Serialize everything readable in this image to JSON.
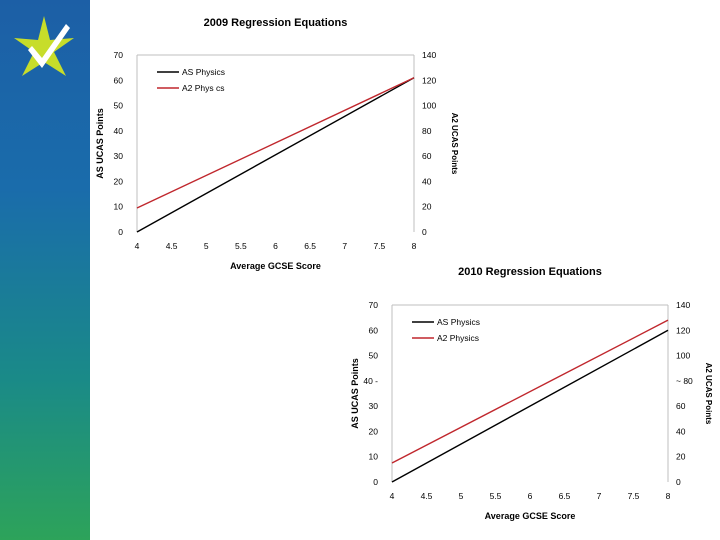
{
  "colors": {
    "sidebar_top": "#1c5fa6",
    "sidebar_bottom": "#2da35a",
    "logo_yellow": "#c7dd2a",
    "logo_white": "#ffffff",
    "as_line": "#000000",
    "a2_line": "#c0272d",
    "tick_label": "#000000",
    "grid": "#bfbfbf"
  },
  "logo": {
    "icon": "star-logo-icon"
  },
  "chart_data": [
    {
      "type": "line",
      "title": "2009 Regression Equations",
      "xlabel": "Average GCSE Score",
      "ylabel": "AS UCAS Points",
      "y2label": "A2 UCAS Points",
      "xlim": [
        4,
        8
      ],
      "ylim": [
        0,
        70
      ],
      "y2lim": [
        0,
        140
      ],
      "x_ticks": [
        4,
        4.5,
        5,
        5.5,
        6,
        6.5,
        7,
        7.5,
        8
      ],
      "x_tick_labels": [
        "4",
        "4.5",
        "5",
        "5.5",
        "6",
        "6.5",
        "7",
        "7.5",
        "8"
      ],
      "y_ticks": [
        0,
        10,
        20,
        30,
        40,
        50,
        60,
        70
      ],
      "y2_ticks": [
        0,
        20,
        40,
        60,
        80,
        100,
        120,
        140
      ],
      "legend_position": "top-left",
      "series": [
        {
          "name": "AS Physics",
          "axis": "left",
          "x": [
            4,
            8
          ],
          "y": [
            0,
            61
          ],
          "color": "#000000"
        },
        {
          "name": "A2 Phys cs",
          "axis": "right",
          "x": [
            4,
            8
          ],
          "y": [
            19,
            122
          ],
          "color": "#c0272d"
        }
      ]
    },
    {
      "type": "line",
      "title": "2010 Regression Equations",
      "xlabel": "Average GCSE Score",
      "ylabel": "AS UCAS Points",
      "y2label": "A2 UCAS Points",
      "xlim": [
        4,
        8
      ],
      "ylim": [
        0,
        70
      ],
      "y2lim": [
        0,
        140
      ],
      "x_ticks": [
        4,
        4.5,
        5,
        5.5,
        6,
        6.5,
        7,
        7.5,
        8
      ],
      "x_tick_labels": [
        "4",
        "4.5",
        "5",
        "5.5",
        "6",
        "6.5",
        "7",
        "7.5",
        "8"
      ],
      "y_ticks": [
        0,
        10,
        20,
        30,
        40,
        50,
        60,
        70
      ],
      "y_tick_labels": [
        "0",
        "10",
        "20",
        "30",
        "40 -",
        "50",
        "60",
        "70"
      ],
      "y2_tick_labels": [
        "0",
        "20",
        "40",
        "60",
        "~ 80",
        "100",
        "120",
        "140"
      ],
      "y2_ticks": [
        0,
        20,
        40,
        60,
        80,
        100,
        120,
        140
      ],
      "legend_position": "top-left",
      "series": [
        {
          "name": "AS Physics",
          "axis": "left",
          "x": [
            4,
            8
          ],
          "y": [
            0,
            60
          ],
          "color": "#000000"
        },
        {
          "name": "A2 Physics",
          "axis": "right",
          "x": [
            4,
            8
          ],
          "y": [
            15,
            128
          ],
          "color": "#c0272d"
        }
      ]
    }
  ]
}
